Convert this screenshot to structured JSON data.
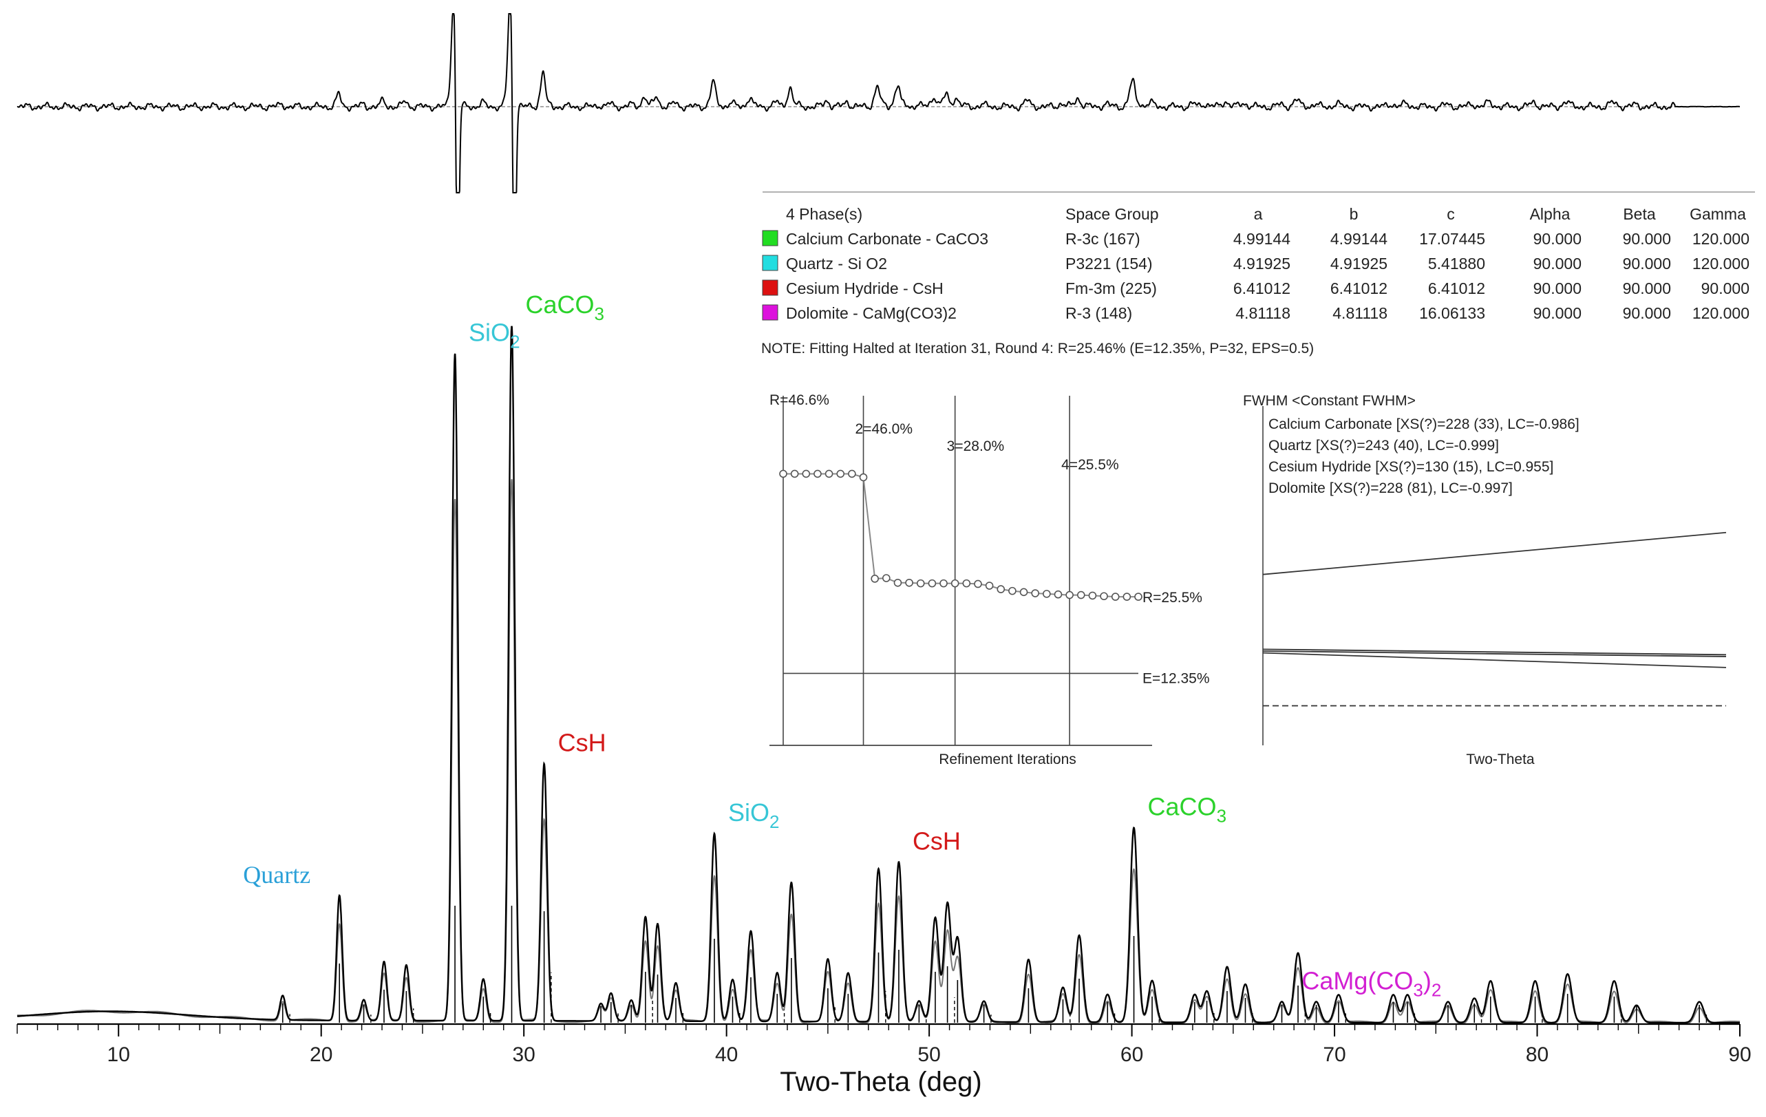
{
  "chart_data": {
    "type": "line",
    "title": "",
    "xlabel": "Two-Theta (deg)",
    "ylabel": "",
    "xlim": [
      5,
      90
    ],
    "x_ticks": [
      10,
      20,
      30,
      40,
      50,
      60,
      70,
      80,
      90
    ],
    "y_range_relative": [
      0,
      100
    ],
    "series": [
      {
        "name": "Observed",
        "style": "solid-black"
      },
      {
        "name": "Calculated",
        "style": "solid-gray"
      },
      {
        "name": "Difference",
        "style": "solid-black"
      }
    ],
    "peaks": [
      {
        "x": 18.1,
        "h": 3.5
      },
      {
        "x": 20.9,
        "h": 18
      },
      {
        "x": 22.1,
        "h": 3
      },
      {
        "x": 23.1,
        "h": 8.5
      },
      {
        "x": 24.2,
        "h": 8
      },
      {
        "x": 26.6,
        "h": 96
      },
      {
        "x": 28.0,
        "h": 6
      },
      {
        "x": 29.4,
        "h": 100
      },
      {
        "x": 31.0,
        "h": 37
      },
      {
        "x": 33.8,
        "h": 2.5
      },
      {
        "x": 34.3,
        "h": 4
      },
      {
        "x": 35.3,
        "h": 3
      },
      {
        "x": 36.0,
        "h": 15
      },
      {
        "x": 36.6,
        "h": 14
      },
      {
        "x": 37.5,
        "h": 5.5
      },
      {
        "x": 39.4,
        "h": 27
      },
      {
        "x": 40.3,
        "h": 6
      },
      {
        "x": 41.2,
        "h": 13
      },
      {
        "x": 42.5,
        "h": 7
      },
      {
        "x": 43.2,
        "h": 20
      },
      {
        "x": 45.0,
        "h": 9
      },
      {
        "x": 46.0,
        "h": 7
      },
      {
        "x": 47.5,
        "h": 22
      },
      {
        "x": 48.5,
        "h": 23
      },
      {
        "x": 49.5,
        "h": 3
      },
      {
        "x": 50.3,
        "h": 15
      },
      {
        "x": 50.9,
        "h": 17
      },
      {
        "x": 51.4,
        "h": 12
      },
      {
        "x": 52.7,
        "h": 3
      },
      {
        "x": 54.9,
        "h": 9
      },
      {
        "x": 56.6,
        "h": 5
      },
      {
        "x": 57.4,
        "h": 12.5
      },
      {
        "x": 58.8,
        "h": 4
      },
      {
        "x": 60.1,
        "h": 28
      },
      {
        "x": 61.0,
        "h": 6
      },
      {
        "x": 63.1,
        "h": 4
      },
      {
        "x": 63.7,
        "h": 4.5
      },
      {
        "x": 64.7,
        "h": 8
      },
      {
        "x": 65.6,
        "h": 5.5
      },
      {
        "x": 67.4,
        "h": 3
      },
      {
        "x": 68.2,
        "h": 10
      },
      {
        "x": 69.1,
        "h": 3
      },
      {
        "x": 70.2,
        "h": 4
      },
      {
        "x": 72.9,
        "h": 4
      },
      {
        "x": 73.6,
        "h": 4
      },
      {
        "x": 75.6,
        "h": 3
      },
      {
        "x": 76.9,
        "h": 3.5
      },
      {
        "x": 77.7,
        "h": 6
      },
      {
        "x": 79.9,
        "h": 6
      },
      {
        "x": 81.5,
        "h": 7
      },
      {
        "x": 83.8,
        "h": 6
      },
      {
        "x": 84.9,
        "h": 2.5
      },
      {
        "x": 88.0,
        "h": 3
      }
    ],
    "peak_labels": [
      {
        "text": "Quartz",
        "x": 20.9,
        "color": "#2aa0d8"
      },
      {
        "text": "SiO",
        "sub": "2",
        "x": 26.6,
        "color": "#37c6d6"
      },
      {
        "text": "CaCO",
        "sub": "3",
        "x": 29.4,
        "color": "#2bd22b"
      },
      {
        "text": "CsH",
        "x": 31.0,
        "color": "#d31a1a"
      },
      {
        "text": "SiO",
        "sub": "2",
        "x": 39.4,
        "color": "#37c6d6"
      },
      {
        "text": "CsH",
        "x": 48.5,
        "color": "#d31a1a"
      },
      {
        "text": "CaCO",
        "sub": "3",
        "x": 60.1,
        "color": "#2bd22b"
      },
      {
        "text": "CaMg(CO",
        "sub": "3",
        "after": ")",
        "sub2": "2",
        "x": 67.7,
        "color": "#d21fd2"
      }
    ],
    "refinement": {
      "xlabel": "Refinement Iterations",
      "round_labels": [
        "R=46.6%",
        "2=46.0%",
        "3=28.0%",
        "4=25.5%"
      ],
      "final_label": "R=25.5%",
      "e_label": "E=12.35%",
      "r_values": [
        46.6,
        46.6,
        46.6,
        46.6,
        46.6,
        46.6,
        46.6,
        46.0,
        28.6,
        28.7,
        27.9,
        27.9,
        27.8,
        27.8,
        27.8,
        27.8,
        27.8,
        27.7,
        27.4,
        26.8,
        26.5,
        26.3,
        26.1,
        26.0,
        25.9,
        25.8,
        25.8,
        25.7,
        25.6,
        25.5,
        25.5,
        25.5
      ],
      "round_start_iterations": [
        0,
        7,
        15,
        25
      ],
      "e_value": 12.35,
      "r_axis": [
        0,
        60
      ]
    },
    "fwhm": {
      "title": "FWHM <Constant FWHM>",
      "xlabel": "Two-Theta",
      "entries": [
        "Calcium Carbonate [XS(?)=228 (33), LC=-0.986]",
        "Quartz [XS(?)=243 (40), LC=-0.999]",
        "Cesium Hydride [XS(?)=130 (15), LC=0.955]",
        "Dolomite [XS(?)=228 (81), LC=-0.997]"
      ],
      "lines": [
        {
          "start": 0.82,
          "end": 1.05,
          "style": "solid"
        },
        {
          "start": 0.41,
          "end": 0.38,
          "style": "solid"
        },
        {
          "start": 0.4,
          "end": 0.37,
          "style": "solid"
        },
        {
          "start": 0.39,
          "end": 0.31,
          "style": "solid"
        },
        {
          "start": 0.1,
          "end": 0.1,
          "style": "dashed"
        }
      ]
    }
  },
  "phase_table": {
    "headers": [
      "4 Phase(s)",
      "Space Group",
      "a",
      "b",
      "c",
      "Alpha",
      "Beta",
      "Gamma"
    ],
    "rows": [
      {
        "color": "#22dd22",
        "cells": [
          "Calcium Carbonate - CaCO3",
          "R-3c (167)",
          "4.99144",
          "4.99144",
          "17.07445",
          "90.000",
          "90.000",
          "120.000"
        ]
      },
      {
        "color": "#22dde0",
        "cells": [
          "Quartz - Si O2",
          "P3221 (154)",
          "4.91925",
          "4.91925",
          "5.41880",
          "90.000",
          "90.000",
          "120.000"
        ]
      },
      {
        "color": "#dd1111",
        "cells": [
          "Cesium Hydride - CsH",
          "Fm-3m (225)",
          "6.41012",
          "6.41012",
          "6.41012",
          "90.000",
          "90.000",
          "90.000"
        ]
      },
      {
        "color": "#dd11dd",
        "cells": [
          "Dolomite - CaMg(CO3)2",
          "R-3 (148)",
          "4.81118",
          "4.81118",
          "16.06133",
          "90.000",
          "90.000",
          "120.000"
        ]
      }
    ],
    "note": "NOTE: Fitting Halted at Iteration 31, Round 4: R=25.46% (E=12.35%, P=32, EPS=0.5)"
  }
}
